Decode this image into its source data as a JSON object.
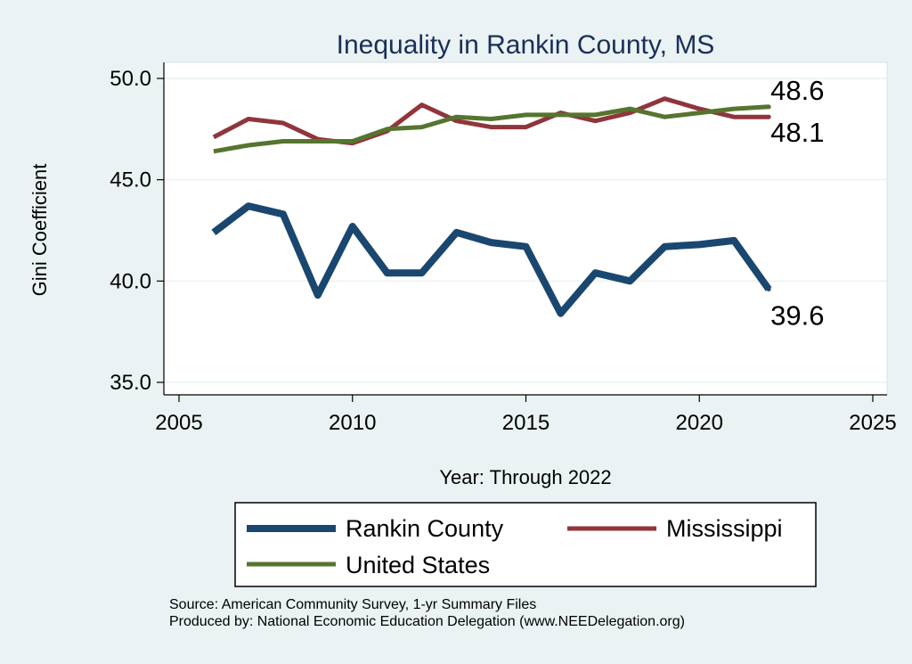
{
  "chart_data": {
    "type": "line",
    "title": "Inequality in Rankin County, MS",
    "xlabel": "Year: Through 2022",
    "ylabel": "Gini Coefficient",
    "xlim": [
      2005,
      2025
    ],
    "ylim": [
      35,
      50
    ],
    "x_ticks": [
      2005,
      2010,
      2015,
      2020,
      2025
    ],
    "y_ticks": [
      35,
      40,
      45,
      50
    ],
    "x_tick_labels": [
      "2005",
      "2010",
      "2015",
      "2020",
      "2025"
    ],
    "y_tick_labels": [
      "35.0",
      "40.0",
      "45.0",
      "50.0"
    ],
    "grid": true,
    "legend_position": "bottom",
    "x": [
      2006,
      2007,
      2008,
      2009,
      2010,
      2011,
      2012,
      2013,
      2014,
      2015,
      2016,
      2017,
      2018,
      2019,
      2020,
      2021,
      2022
    ],
    "series": [
      {
        "name": "Rankin County",
        "color": "#1a476f",
        "values": [
          42.4,
          43.7,
          43.3,
          39.3,
          42.7,
          40.4,
          40.4,
          42.4,
          41.9,
          41.7,
          38.4,
          40.4,
          40.0,
          41.7,
          41.8,
          42.0,
          39.6
        ],
        "end_label": "39.6"
      },
      {
        "name": "Mississippi",
        "color": "#90353b",
        "values": [
          47.1,
          48.0,
          47.8,
          47.0,
          46.8,
          47.4,
          48.7,
          47.9,
          47.6,
          47.6,
          48.3,
          47.9,
          48.3,
          49.0,
          48.5,
          48.1,
          48.1
        ],
        "end_label": "48.1"
      },
      {
        "name": "United States",
        "color": "#55752f",
        "values": [
          46.4,
          46.7,
          46.9,
          46.9,
          46.9,
          47.5,
          47.6,
          48.1,
          48.0,
          48.2,
          48.2,
          48.2,
          48.5,
          48.1,
          48.3,
          48.5,
          48.6
        ],
        "end_label": "48.6"
      }
    ]
  },
  "notes": {
    "source": "Source: American Community Survey, 1-yr Summary Files",
    "produced": "Produced by: National Economic Education Delegation (www.NEEDelegation.org)"
  }
}
